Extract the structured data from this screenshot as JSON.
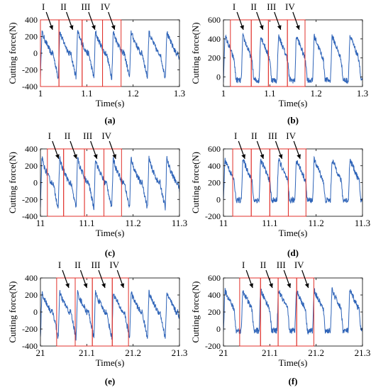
{
  "colors": {
    "signal": "#2f64b8",
    "boxes": "#e0312b",
    "axes": "#000000"
  },
  "chart_data": [
    {
      "panel_label": "(a)",
      "type": "line",
      "xlabel": "Time(s)",
      "ylabel": "Cutting force(N)",
      "xlim": [
        1.0,
        1.3
      ],
      "ylim": [
        -400,
        400
      ],
      "xticks": [
        1,
        1.1,
        1.2,
        1.3
      ],
      "xtick_labels": [
        "1",
        "1.1",
        "1.2",
        "1.3"
      ],
      "yticks": [
        400,
        200,
        0,
        -200,
        -400
      ],
      "ytick_labels": [
        "400",
        "200",
        "0",
        "-200",
        "-400"
      ],
      "cycle_period_s": 0.0385,
      "first_cycle_s": 1.0,
      "wave": {
        "low": -300,
        "jump": 260,
        "top": 180,
        "mid": 0,
        "floor": 0
      },
      "segments": [
        1.0,
        1.04,
        1.09,
        1.134,
        1.174
      ],
      "segment_labels": [
        "I",
        "II",
        "III",
        "IV"
      ]
    },
    {
      "panel_label": "(b)",
      "type": "line",
      "xlabel": "Time(s)",
      "ylabel": "Cutting force(N)",
      "xlim": [
        1.0,
        1.3
      ],
      "ylim": [
        -100,
        600
      ],
      "xticks": [
        1,
        1.1,
        1.2,
        1.3
      ],
      "xtick_labels": [
        "1",
        "1.1",
        "1.2",
        "1.3"
      ],
      "yticks": [
        600,
        400,
        200,
        0
      ],
      "ytick_labels": [
        "600",
        "400",
        "200",
        "0"
      ],
      "cycle_period_s": 0.0385,
      "first_cycle_s": 1.0,
      "wave": {
        "low": -40,
        "jump": 430,
        "top": 380,
        "mid": 180,
        "floor": -30
      },
      "segments": [
        1.015,
        1.06,
        1.097,
        1.138,
        1.176
      ],
      "segment_labels": [
        "I",
        "II",
        "III",
        "IV"
      ]
    },
    {
      "panel_label": "(c)",
      "type": "line",
      "xlabel": "Time(s)",
      "ylabel": "Cutting force(N)",
      "xlim": [
        11.0,
        11.3
      ],
      "ylim": [
        -400,
        400
      ],
      "xticks": [
        11,
        11.1,
        11.2,
        11.3
      ],
      "xtick_labels": [
        "11",
        "11.1",
        "11.2",
        "11.3"
      ],
      "yticks": [
        400,
        200,
        0,
        -200,
        -400
      ],
      "ytick_labels": [
        "400",
        "200",
        "0",
        "-200",
        "-400"
      ],
      "cycle_period_s": 0.0385,
      "first_cycle_s": 11.0,
      "wave": {
        "low": -310,
        "jump": 300,
        "top": 190,
        "mid": 0,
        "floor": 0
      },
      "segments": [
        11.015,
        11.05,
        11.095,
        11.137,
        11.175
      ],
      "segment_labels": [
        "I",
        "II",
        "III",
        "IV"
      ]
    },
    {
      "panel_label": "(d)",
      "type": "line",
      "xlabel": "Time(s)",
      "ylabel": "Cutting force(N)",
      "xlim": [
        11.0,
        11.3
      ],
      "ylim": [
        -200,
        600
      ],
      "xticks": [
        11,
        11.1,
        11.2,
        11.3
      ],
      "xtick_labels": [
        "11",
        "11.1",
        "11.2",
        "11.3"
      ],
      "yticks": [
        600,
        400,
        200,
        0,
        -200
      ],
      "ytick_labels": [
        "600",
        "400",
        "200",
        "0",
        "-200"
      ],
      "cycle_period_s": 0.0385,
      "first_cycle_s": 11.0,
      "wave": {
        "low": -10,
        "jump": 470,
        "top": 420,
        "mid": 220,
        "floor": -10
      },
      "segments": [
        11.02,
        11.06,
        11.1,
        11.14,
        11.178
      ],
      "segment_labels": [
        "I",
        "II",
        "III",
        "IV"
      ]
    },
    {
      "panel_label": "(e)",
      "type": "line",
      "xlabel": "Time(s)",
      "ylabel": "Cutting force(N)",
      "xlim": [
        21.0,
        21.3
      ],
      "ylim": [
        -400,
        400
      ],
      "xticks": [
        21,
        21.1,
        21.2,
        21.3
      ],
      "xtick_labels": [
        "21",
        "21.1",
        "21.2",
        "21.3"
      ],
      "yticks": [
        400,
        200,
        0,
        -200,
        -400
      ],
      "ytick_labels": [
        "400",
        "200",
        "0",
        "-200",
        "-400"
      ],
      "cycle_period_s": 0.0385,
      "first_cycle_s": 21.0,
      "wave": {
        "low": -310,
        "jump": 230,
        "top": 160,
        "mid": 0,
        "floor": 0
      },
      "segments": [
        21.035,
        21.075,
        21.112,
        21.155,
        21.19
      ],
      "segment_labels": [
        "I",
        "II",
        "III",
        "IV"
      ]
    },
    {
      "panel_label": "(f)",
      "type": "line",
      "xlabel": "Time(s)",
      "ylabel": "Cutting force(N)",
      "xlim": [
        21.0,
        21.3
      ],
      "ylim": [
        -200,
        600
      ],
      "xticks": [
        21,
        21.1,
        21.2,
        21.3
      ],
      "xtick_labels": [
        "21",
        "21.1",
        "21.2",
        "21.3"
      ],
      "yticks": [
        600,
        400,
        200,
        0,
        -200
      ],
      "ytick_labels": [
        "600",
        "400",
        "200",
        "0",
        "-200"
      ],
      "cycle_period_s": 0.0385,
      "first_cycle_s": 21.0,
      "wave": {
        "low": -20,
        "jump": 460,
        "top": 400,
        "mid": 230,
        "floor": -20
      },
      "segments": [
        21.035,
        21.08,
        21.118,
        21.158,
        21.195
      ],
      "segment_labels": [
        "I",
        "II",
        "III",
        "IV"
      ]
    }
  ]
}
